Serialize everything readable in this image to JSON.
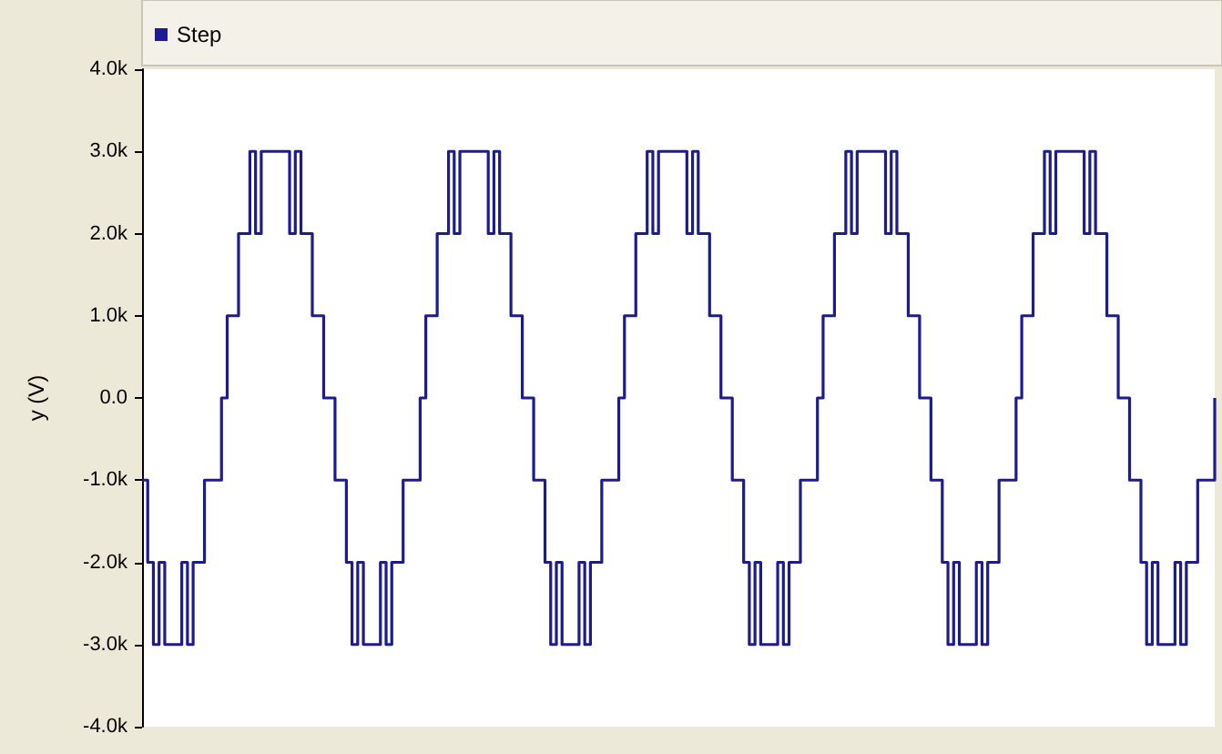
{
  "chart_data": {
    "type": "step",
    "ylabel": "y (V)",
    "legend": "top left",
    "grid": false,
    "marker": "none",
    "line_style": "solid",
    "ylim": [
      -4000,
      4000
    ],
    "yticks": [
      {
        "value": -4000,
        "label": "-4.0k"
      },
      {
        "value": -3000,
        "label": "-3.0k"
      },
      {
        "value": -2000,
        "label": "-2.0k"
      },
      {
        "value": -1000,
        "label": "-1.0k"
      },
      {
        "value": 0,
        "label": "0.0"
      },
      {
        "value": 1000,
        "label": "1.0k"
      },
      {
        "value": 2000,
        "label": "2.0k"
      },
      {
        "value": 3000,
        "label": "3.0k"
      },
      {
        "value": 4000,
        "label": "4.0k"
      }
    ],
    "categories": [
      null,
      null,
      null,
      null,
      null,
      null,
      null,
      null,
      null,
      null,
      null,
      null,
      null,
      null,
      null,
      null,
      null,
      null,
      null,
      null,
      null,
      null,
      null,
      null,
      null,
      null,
      null,
      null,
      null,
      null,
      null,
      null,
      null,
      null,
      null,
      null,
      null,
      null,
      null,
      null,
      null,
      null,
      null,
      null,
      null,
      null,
      null,
      null,
      null,
      null,
      null,
      null,
      null,
      null,
      null,
      null,
      null,
      null,
      null,
      null,
      null,
      null,
      null,
      null,
      null,
      null,
      null,
      null,
      null,
      null,
      null,
      null,
      null,
      null,
      null,
      null,
      null,
      null,
      null,
      null,
      null,
      null,
      null,
      null,
      null,
      null,
      null,
      null,
      null,
      null,
      null,
      null,
      null,
      null,
      null,
      null,
      null,
      null,
      null,
      null,
      null,
      null,
      null,
      null,
      null,
      null,
      null,
      null,
      null,
      null,
      null,
      null,
      null,
      null,
      null,
      null,
      null,
      null,
      null,
      null,
      null,
      null,
      null,
      null,
      null,
      null,
      null,
      null,
      null,
      null,
      null,
      null,
      null,
      null,
      null,
      null,
      null,
      null,
      null,
      null,
      null,
      null,
      null,
      null,
      null,
      null,
      null,
      null,
      null,
      null,
      null,
      null,
      null,
      null,
      null,
      null,
      null,
      null,
      null,
      null,
      null,
      null,
      null,
      null,
      null,
      null,
      null,
      null,
      null,
      null,
      null,
      null,
      null,
      null,
      null,
      null,
      null,
      null,
      null,
      null,
      null,
      null,
      null,
      null,
      null,
      null,
      null,
      null,
      null,
      null
    ],
    "series": [
      {
        "name": "Step",
        "color": "#1c1c8e",
        "values": [
          -1000,
          -2000,
          -3000,
          -2000,
          -3000,
          -3000,
          -3000,
          -2000,
          -3000,
          -2000,
          -2000,
          -1000,
          -1000,
          -1000,
          0,
          1000,
          1000,
          2000,
          2000,
          3000,
          2000,
          3000,
          3000,
          3000,
          3000,
          3000,
          2000,
          3000,
          2000,
          2000,
          1000,
          1000,
          0,
          0,
          -1000,
          -1000,
          -2000,
          -3000,
          -2000,
          -3000,
          -3000,
          -3000,
          -2000,
          -3000,
          -2000,
          -2000,
          -1000,
          -1000,
          -1000,
          0,
          1000,
          1000,
          2000,
          2000,
          3000,
          2000,
          3000,
          3000,
          3000,
          3000,
          3000,
          2000,
          3000,
          2000,
          2000,
          1000,
          1000,
          0,
          0,
          -1000,
          -1000,
          -2000,
          -3000,
          -2000,
          -3000,
          -3000,
          -3000,
          -2000,
          -3000,
          -2000,
          -2000,
          -1000,
          -1000,
          -1000,
          0,
          1000,
          1000,
          2000,
          2000,
          3000,
          2000,
          3000,
          3000,
          3000,
          3000,
          3000,
          2000,
          3000,
          2000,
          2000,
          1000,
          1000,
          0,
          0,
          -1000,
          -1000,
          -2000,
          -3000,
          -2000,
          -3000,
          -3000,
          -3000,
          -2000,
          -3000,
          -2000,
          -2000,
          -1000,
          -1000,
          -1000,
          0,
          1000,
          1000,
          2000,
          2000,
          3000,
          2000,
          3000,
          3000,
          3000,
          3000,
          3000,
          2000,
          3000,
          2000,
          2000,
          1000,
          1000,
          0,
          0,
          -1000,
          -1000,
          -2000,
          -3000,
          -2000,
          -3000,
          -3000,
          -3000,
          -2000,
          -3000,
          -2000,
          -2000,
          -1000,
          -1000,
          -1000,
          0,
          1000,
          1000,
          2000,
          2000,
          3000,
          2000,
          3000,
          3000,
          3000,
          3000,
          3000,
          2000,
          3000,
          2000,
          2000,
          1000,
          1000,
          0,
          0,
          -1000,
          -1000,
          -2000,
          -3000,
          -2000,
          -3000,
          -3000,
          -3000,
          -2000,
          -3000,
          -2000,
          -2000,
          -1000,
          -1000,
          -1000,
          0
        ]
      }
    ]
  }
}
